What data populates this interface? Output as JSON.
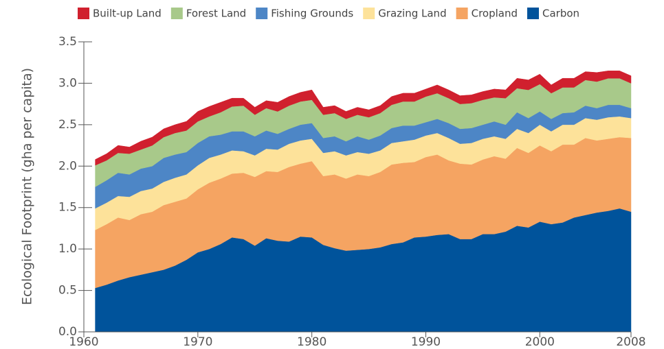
{
  "chart_data": {
    "type": "stacked_area",
    "ylabel": "Ecological Footprint (gha per capita)",
    "x": [
      1961,
      1962,
      1963,
      1964,
      1965,
      1966,
      1967,
      1968,
      1969,
      1970,
      1971,
      1972,
      1973,
      1974,
      1975,
      1976,
      1977,
      1978,
      1979,
      1980,
      1981,
      1982,
      1983,
      1984,
      1985,
      1986,
      1987,
      1988,
      1989,
      1990,
      1991,
      1992,
      1993,
      1994,
      1995,
      1996,
      1997,
      1998,
      1999,
      2000,
      2001,
      2002,
      2003,
      2004,
      2005,
      2006,
      2007,
      2008
    ],
    "series": [
      {
        "name": "Carbon",
        "color": "#00539b",
        "values": [
          0.53,
          0.57,
          0.62,
          0.66,
          0.69,
          0.72,
          0.75,
          0.8,
          0.87,
          0.96,
          1.0,
          1.06,
          1.14,
          1.12,
          1.04,
          1.13,
          1.1,
          1.09,
          1.15,
          1.14,
          1.05,
          1.01,
          0.98,
          0.99,
          1.0,
          1.02,
          1.06,
          1.08,
          1.14,
          1.15,
          1.17,
          1.18,
          1.12,
          1.12,
          1.18,
          1.18,
          1.21,
          1.28,
          1.26,
          1.33,
          1.3,
          1.32,
          1.38,
          1.41,
          1.44,
          1.46,
          1.49,
          1.45
        ]
      },
      {
        "name": "Cropland",
        "color": "#f5a462",
        "values": [
          0.7,
          0.73,
          0.76,
          0.69,
          0.73,
          0.73,
          0.78,
          0.77,
          0.74,
          0.76,
          0.8,
          0.79,
          0.77,
          0.8,
          0.83,
          0.81,
          0.83,
          0.9,
          0.88,
          0.92,
          0.83,
          0.89,
          0.87,
          0.91,
          0.88,
          0.91,
          0.96,
          0.96,
          0.91,
          0.96,
          0.97,
          0.89,
          0.91,
          0.9,
          0.9,
          0.94,
          0.88,
          0.94,
          0.9,
          0.92,
          0.88,
          0.94,
          0.88,
          0.93,
          0.87,
          0.87,
          0.86,
          0.89
        ]
      },
      {
        "name": "Grazing Land",
        "color": "#fde29a",
        "values": [
          0.26,
          0.26,
          0.26,
          0.28,
          0.28,
          0.28,
          0.28,
          0.29,
          0.29,
          0.29,
          0.3,
          0.29,
          0.28,
          0.26,
          0.26,
          0.27,
          0.27,
          0.28,
          0.28,
          0.27,
          0.28,
          0.28,
          0.28,
          0.27,
          0.27,
          0.26,
          0.26,
          0.26,
          0.27,
          0.26,
          0.26,
          0.27,
          0.24,
          0.26,
          0.25,
          0.24,
          0.24,
          0.23,
          0.24,
          0.25,
          0.24,
          0.24,
          0.24,
          0.24,
          0.25,
          0.26,
          0.25,
          0.24
        ]
      },
      {
        "name": "Fishing Grounds",
        "color": "#4d86c6",
        "values": [
          0.26,
          0.27,
          0.28,
          0.27,
          0.27,
          0.27,
          0.29,
          0.28,
          0.27,
          0.27,
          0.26,
          0.24,
          0.23,
          0.24,
          0.23,
          0.22,
          0.19,
          0.18,
          0.19,
          0.19,
          0.18,
          0.18,
          0.17,
          0.19,
          0.17,
          0.18,
          0.18,
          0.19,
          0.17,
          0.16,
          0.17,
          0.18,
          0.18,
          0.18,
          0.17,
          0.18,
          0.17,
          0.2,
          0.18,
          0.16,
          0.15,
          0.14,
          0.15,
          0.15,
          0.14,
          0.15,
          0.14,
          0.12
        ]
      },
      {
        "name": "Forest Land",
        "color": "#a8c98a",
        "values": [
          0.26,
          0.24,
          0.24,
          0.25,
          0.23,
          0.25,
          0.25,
          0.26,
          0.26,
          0.26,
          0.24,
          0.27,
          0.3,
          0.31,
          0.26,
          0.27,
          0.27,
          0.28,
          0.28,
          0.28,
          0.28,
          0.28,
          0.27,
          0.26,
          0.27,
          0.27,
          0.28,
          0.29,
          0.29,
          0.31,
          0.31,
          0.3,
          0.3,
          0.3,
          0.3,
          0.29,
          0.32,
          0.29,
          0.34,
          0.33,
          0.31,
          0.31,
          0.3,
          0.31,
          0.32,
          0.32,
          0.32,
          0.3
        ]
      },
      {
        "name": "Built-up Land",
        "color": "#d0202e",
        "values": [
          0.07,
          0.08,
          0.09,
          0.08,
          0.1,
          0.1,
          0.1,
          0.1,
          0.11,
          0.12,
          0.12,
          0.12,
          0.1,
          0.09,
          0.09,
          0.09,
          0.11,
          0.11,
          0.11,
          0.12,
          0.09,
          0.09,
          0.09,
          0.09,
          0.09,
          0.09,
          0.1,
          0.1,
          0.1,
          0.09,
          0.1,
          0.1,
          0.1,
          0.1,
          0.1,
          0.1,
          0.1,
          0.12,
          0.12,
          0.12,
          0.1,
          0.11,
          0.11,
          0.1,
          0.11,
          0.09,
          0.09,
          0.09
        ]
      }
    ],
    "xlim": [
      1960,
      2008
    ],
    "xticks": [
      1960,
      1970,
      1980,
      1990,
      2000,
      2008
    ],
    "ylim": [
      0,
      3.5
    ],
    "yticks": [
      {
        "value": 0,
        "label": "0.0"
      },
      0.5,
      {
        "value": 1,
        "label": "1.0"
      },
      1.5,
      {
        "value": 2,
        "label": "2.0"
      },
      2.5,
      {
        "value": 3,
        "label": "3.0"
      },
      3.5
    ]
  }
}
